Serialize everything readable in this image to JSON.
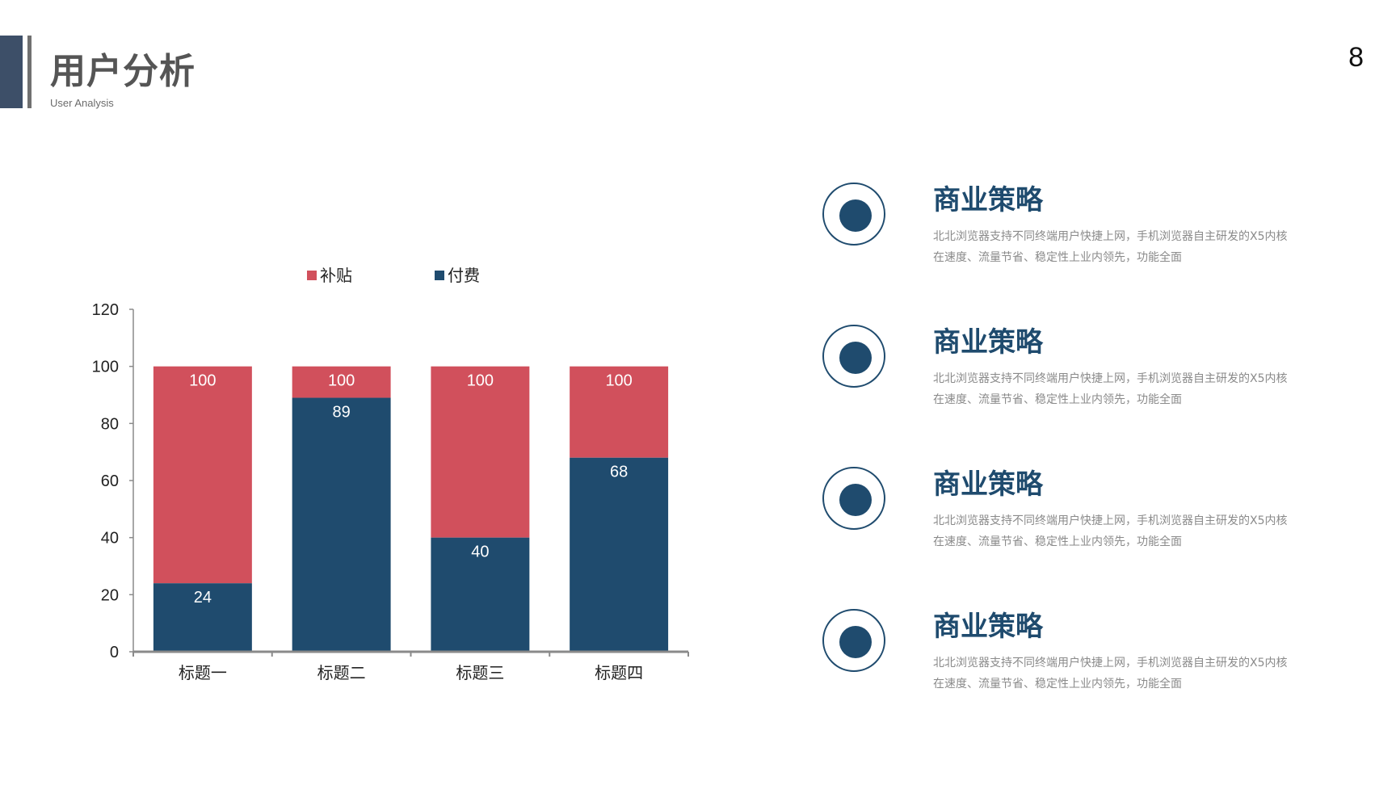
{
  "header": {
    "title": "用户分析",
    "subtitle": "User Analysis",
    "page_number": "8"
  },
  "colors": {
    "accent": "#3d4f68",
    "navy": "#1f4b6e",
    "red": "#d1505c",
    "text_gray": "#555555"
  },
  "chart_data": {
    "type": "bar",
    "stacked": true,
    "categories": [
      "标题一",
      "标题二",
      "标题三",
      "标题四"
    ],
    "series": [
      {
        "name": "付费",
        "values": [
          24,
          89,
          40,
          68
        ],
        "color": "#1f4b6e"
      },
      {
        "name": "补贴",
        "values": [
          76,
          11,
          60,
          32
        ],
        "color": "#d1505c",
        "labels": [
          "100",
          "100",
          "100",
          "100"
        ]
      }
    ],
    "legend_order": [
      "补贴",
      "付费"
    ],
    "ylim": [
      0,
      120
    ],
    "yticks": [
      0,
      20,
      40,
      60,
      80,
      100,
      120
    ],
    "legend_position": "top",
    "grid": false
  },
  "items": [
    {
      "title": "商业策略",
      "desc": "北北浏览器支持不同终端用户快捷上网，手机浏览器自主研发的X5内核在速度、流量节省、稳定性上业内领先，功能全面"
    },
    {
      "title": "商业策略",
      "desc": "北北浏览器支持不同终端用户快捷上网，手机浏览器自主研发的X5内核在速度、流量节省、稳定性上业内领先，功能全面"
    },
    {
      "title": "商业策略",
      "desc": "北北浏览器支持不同终端用户快捷上网，手机浏览器自主研发的X5内核在速度、流量节省、稳定性上业内领先，功能全面"
    },
    {
      "title": "商业策略",
      "desc": "北北浏览器支持不同终端用户快捷上网，手机浏览器自主研发的X5内核在速度、流量节省、稳定性上业内领先，功能全面"
    }
  ]
}
